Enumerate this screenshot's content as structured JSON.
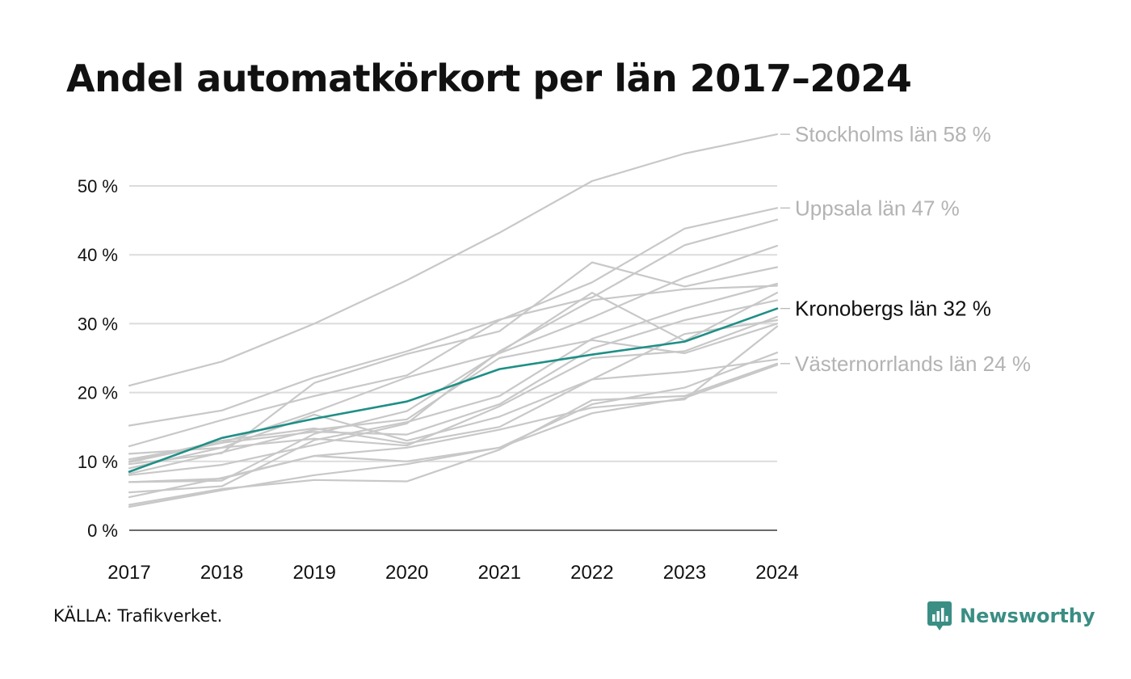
{
  "title": "Andel automatkörkort per län 2017–2024",
  "source": "KÄLLA: Trafikverket.",
  "brand": {
    "name": "Newsworthy",
    "icon": "bar-chart-bubble-icon",
    "color": "#3a8e84"
  },
  "chart_data": {
    "type": "line",
    "title": "Andel automatkörkort per län 2017–2024",
    "x": [
      2017,
      2018,
      2019,
      2020,
      2021,
      2022,
      2023,
      2024
    ],
    "ylim": [
      0,
      58
    ],
    "yticks": [
      0,
      10,
      20,
      30,
      40,
      50
    ],
    "ytick_labels": [
      "0 %",
      "10 %",
      "20 %",
      "30 %",
      "40 %",
      "50 %"
    ],
    "xlabel": "",
    "ylabel": "",
    "grid": true,
    "colors": {
      "highlight": "#1f8f86",
      "background_series": "#c8c8c8",
      "label_muted": "#b3b3b3",
      "label_highlight": "#111111"
    },
    "series": [
      {
        "name": "Stockholms län",
        "values": [
          21.0,
          24.5,
          30.0,
          36.3,
          43.2,
          50.7,
          54.7,
          57.5
        ],
        "label": "Stockholms län 58 %",
        "style": "muted"
      },
      {
        "name": "Uppsala län",
        "values": [
          12.2,
          16.0,
          19.5,
          22.5,
          30.5,
          36.0,
          43.8,
          46.8
        ],
        "label": "Uppsala län 47 %",
        "style": "muted"
      },
      {
        "name": "Kronobergs län",
        "values": [
          8.5,
          13.4,
          16.2,
          18.7,
          23.4,
          25.5,
          27.4,
          32.2
        ],
        "label": "Kronobergs län 32 %",
        "style": "highlight"
      },
      {
        "name": "Västernorrlands län",
        "values": [
          3.7,
          6.0,
          7.3,
          7.1,
          11.7,
          18.9,
          19.5,
          24.2
        ],
        "label": "Västernorrlands län 24 %",
        "style": "muted"
      },
      {
        "values": [
          15.2,
          17.4,
          22.2,
          26.0,
          30.6,
          33.8,
          41.4,
          45.1
        ],
        "style": "muted"
      },
      {
        "values": [
          10.3,
          12.7,
          17.2,
          22.2,
          25.7,
          30.9,
          36.7,
          41.3
        ],
        "style": "muted"
      },
      {
        "values": [
          9.6,
          11.2,
          21.4,
          25.6,
          28.9,
          38.9,
          35.4,
          38.2
        ],
        "style": "muted"
      },
      {
        "values": [
          8.0,
          9.5,
          12.4,
          15.5,
          26.0,
          33.4,
          35.0,
          35.5
        ],
        "style": "muted"
      },
      {
        "values": [
          7.0,
          7.2,
          14.0,
          17.3,
          25.8,
          34.5,
          27.5,
          34.5
        ],
        "style": "muted"
      },
      {
        "values": [
          5.5,
          6.4,
          13.1,
          15.7,
          19.5,
          27.8,
          32.2,
          35.8
        ],
        "style": "muted"
      },
      {
        "values": [
          9.9,
          12.7,
          14.3,
          13.9,
          18.3,
          26.4,
          30.5,
          33.4
        ],
        "style": "muted"
      },
      {
        "values": [
          9.0,
          12.0,
          13.3,
          12.3,
          18.0,
          25.0,
          26.0,
          31.0
        ],
        "style": "muted"
      },
      {
        "values": [
          10.0,
          13.0,
          14.8,
          12.6,
          15.0,
          21.9,
          28.5,
          30.5
        ],
        "style": "muted"
      },
      {
        "values": [
          8.2,
          11.3,
          14.6,
          16.1,
          25.0,
          27.6,
          25.7,
          30.0
        ],
        "style": "muted"
      },
      {
        "values": [
          11.1,
          12.0,
          16.8,
          13.0,
          16.5,
          21.9,
          23.0,
          24.8
        ],
        "style": "muted"
      },
      {
        "values": [
          4.8,
          7.6,
          10.8,
          10.0,
          12.0,
          18.3,
          20.7,
          25.8
        ],
        "style": "muted"
      },
      {
        "values": [
          3.4,
          5.8,
          8.0,
          9.6,
          12.0,
          17.0,
          19.2,
          24.0
        ],
        "style": "muted"
      },
      {
        "values": [
          7.0,
          7.5,
          10.8,
          12.0,
          14.6,
          17.8,
          19.0,
          29.6
        ],
        "style": "muted"
      }
    ]
  }
}
